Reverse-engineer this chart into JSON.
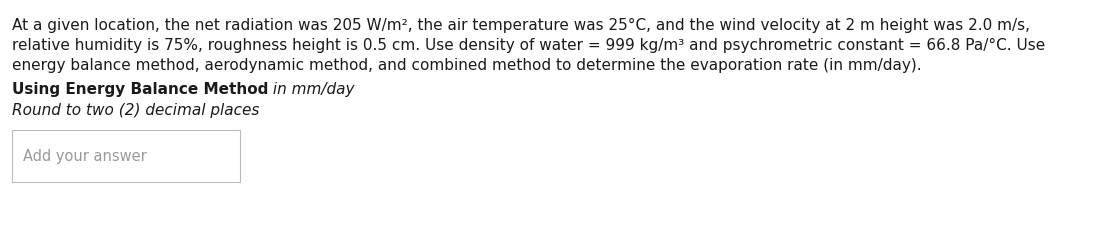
{
  "bg_color": "#ffffff",
  "text_color": "#1a1a1a",
  "gray_color": "#999999",
  "line1": "At a given location, the net radiation was 205 W/m², the air temperature was 25°C, and the wind velocity at 2 m height was 2.0 m/s,",
  "line2": "relative humidity is 75%, roughness height is 0.5 cm. Use density of water = 999 kg/m³ and psychrometric constant = 66.8 Pa/°C. Use",
  "line3": "energy balance method, aerodynamic method, and combined method to determine the evaporation rate (in mm/day).",
  "bold_part": "Using Energy Balance Method",
  "italic_part": " in mm/day",
  "round_line": "Round to two (2) decimal places",
  "answer_placeholder": "Add your answer",
  "font_size": 11.0,
  "box_color": "#bbbbbb"
}
